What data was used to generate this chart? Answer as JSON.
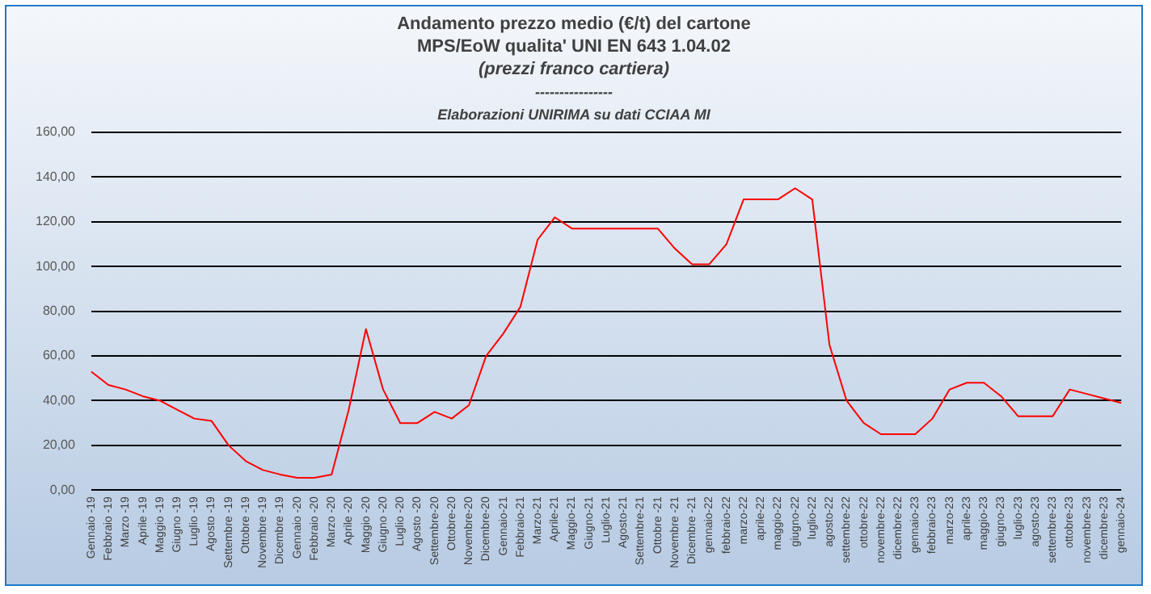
{
  "chart_data": {
    "type": "line",
    "title": "Andamento prezzo medio (€/t) del cartone",
    "subtitle": "MPS/EoW qualita' UNI EN 643 1.04.02",
    "annotations": [
      "(prezzi franco cartiera)",
      "----------------",
      "Elaborazioni UNIRIMA su dati CCIAA MI"
    ],
    "categories": [
      "Gennaio -19",
      "Febbraio -19",
      "Marzo -19",
      "Aprile -19",
      "Maggio -19",
      "Giugno -19",
      "Luglio -19",
      "Agosto -19",
      "Settembre -19",
      "Ottobre -19",
      "Novembre -19",
      "Dicembre -19",
      "Gennaio -20",
      "Febbraio -20",
      "Marzo -20",
      "Aprile -20",
      "Maggio -20",
      "Giugno -20",
      "Luglio -20",
      "Agosto -20",
      "Settembre-20",
      "Ottobre-20",
      "Novembre-20",
      "Dicembre-20",
      "Gennaio-21",
      "Febbraio-21",
      "Marzo-21",
      "Aprile-21",
      "Maggio-21",
      "Giugno-21",
      "Luglio-21",
      "Agosto-21",
      "Settembre-21",
      "Ottobre -21",
      "Novembre -21",
      "Dicembre -21",
      "gennaio-22",
      "febbraio-22",
      "marzo-22",
      "aprile-22",
      "maggio-22",
      "giugno-22",
      "luglio-22",
      "agosto-22",
      "settembre-22",
      "ottobre-22",
      "novembre-22",
      "dicembre-22",
      "gennaio-23",
      "febbraio-23",
      "marzo-23",
      "aprile-23",
      "maggio-23",
      "giugno-23",
      "luglio-23",
      "agosto-23",
      "settembre-23",
      "ottobre-23",
      "novembre-23",
      "dicembre-23",
      "gennaio-24"
    ],
    "series": [
      {
        "color": "#ff0000",
        "values": [
          53,
          47,
          45,
          42,
          40,
          36,
          32,
          31,
          20,
          13,
          9,
          7,
          5.5,
          5.5,
          7,
          36,
          72,
          45,
          30,
          30,
          35,
          32,
          38,
          60,
          70,
          82,
          112,
          122,
          117,
          117,
          117,
          117,
          117,
          117,
          108,
          101,
          101,
          110,
          130,
          130,
          130,
          135,
          130,
          65,
          40,
          30,
          25,
          25,
          25,
          32,
          45,
          48,
          48,
          42,
          33,
          33,
          33,
          45,
          43,
          41,
          39
        ]
      }
    ],
    "ylim": [
      0,
      160
    ],
    "yticks": [
      {
        "value": 0,
        "label": "0,00"
      },
      {
        "value": 20,
        "label": "20,00"
      },
      {
        "value": 40,
        "label": "40,00"
      },
      {
        "value": 60,
        "label": "60,00"
      },
      {
        "value": 80,
        "label": "80,00"
      },
      {
        "value": 100,
        "label": "100,00"
      },
      {
        "value": 120,
        "label": "120,00"
      },
      {
        "value": 140,
        "label": "140,00"
      },
      {
        "value": 160,
        "label": "160,00"
      }
    ],
    "grid": "y",
    "legend": false,
    "marker": "none",
    "line_style": "solid"
  }
}
